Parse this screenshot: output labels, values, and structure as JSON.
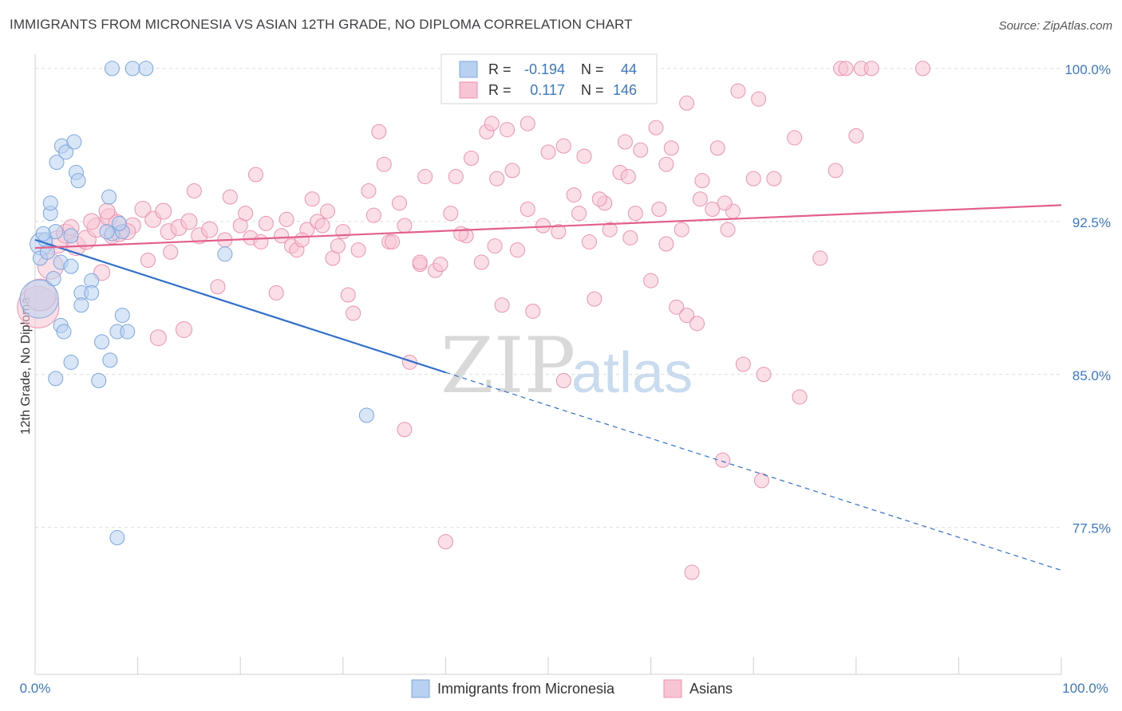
{
  "title": "IMMIGRANTS FROM MICRONESIA VS ASIAN 12TH GRADE, NO DIPLOMA CORRELATION CHART",
  "source": "Source: ZipAtlas.com",
  "watermark": {
    "zip": "ZIP",
    "atlas": "atlas"
  },
  "stats_box": {
    "rows": [
      {
        "r_label": "R =",
        "r_value": "-0.194",
        "n_label": "N =",
        "n_value": "44"
      },
      {
        "r_label": "R =",
        "r_value": "0.117",
        "n_label": "N =",
        "n_value": "146"
      }
    ]
  },
  "colors": {
    "blue_fill": "#b9d1f0",
    "blue_stroke": "#7aa6df",
    "blue_line": "#2f6fcc",
    "pink_fill": "#f7c4d4",
    "pink_stroke": "#ec92b0",
    "pink_line": "#e2608c",
    "grid": "#dcdcdc",
    "tick_text": "#3b78c3"
  },
  "chart_data": {
    "type": "scatter",
    "xlabel": "",
    "ylabel": "12th Grade, No Diploma",
    "xlim": [
      0,
      100
    ],
    "ylim": [
      70.3,
      100.7
    ],
    "x_tick_labels": {
      "left": "0.0%",
      "right": "100.0%"
    },
    "y_ticks": [
      {
        "value": 100.0,
        "label": "100.0%"
      },
      {
        "value": 92.5,
        "label": "92.5%"
      },
      {
        "value": 85.0,
        "label": "85.0%"
      },
      {
        "value": 77.5,
        "label": "77.5%"
      }
    ],
    "grid": true,
    "legend_position": "bottom",
    "series": [
      {
        "name": "Immigrants from Micronesia",
        "color": "blue",
        "trend": {
          "x": [
            0,
            40
          ],
          "y": [
            91.6,
            85.1
          ],
          "dashed_to": [
            100,
            75.4
          ]
        },
        "points": [
          {
            "x": 0.6,
            "y": 91.4,
            "s": 14
          },
          {
            "x": 0.4,
            "y": 88.7,
            "s": 24
          },
          {
            "x": 1.0,
            "y": 91.6,
            "s": 9
          },
          {
            "x": 1.5,
            "y": 92.9,
            "s": 9
          },
          {
            "x": 2.0,
            "y": 92.0,
            "s": 9
          },
          {
            "x": 0.8,
            "y": 91.9,
            "s": 9
          },
          {
            "x": 0.5,
            "y": 90.7,
            "s": 9
          },
          {
            "x": 1.2,
            "y": 91.0,
            "s": 9
          },
          {
            "x": 2.5,
            "y": 90.5,
            "s": 9
          },
          {
            "x": 3.5,
            "y": 91.8,
            "s": 9
          },
          {
            "x": 1.5,
            "y": 93.4,
            "s": 9
          },
          {
            "x": 2.1,
            "y": 95.4,
            "s": 9
          },
          {
            "x": 2.6,
            "y": 96.2,
            "s": 9
          },
          {
            "x": 3.0,
            "y": 95.9,
            "s": 9
          },
          {
            "x": 3.8,
            "y": 96.4,
            "s": 9
          },
          {
            "x": 4.0,
            "y": 94.9,
            "s": 9
          },
          {
            "x": 4.2,
            "y": 94.5,
            "s": 9
          },
          {
            "x": 7.2,
            "y": 93.7,
            "s": 9
          },
          {
            "x": 7.5,
            "y": 91.9,
            "s": 9
          },
          {
            "x": 8.5,
            "y": 92.0,
            "s": 9
          },
          {
            "x": 7.0,
            "y": 92.0,
            "s": 9
          },
          {
            "x": 1.8,
            "y": 89.7,
            "s": 9
          },
          {
            "x": 3.5,
            "y": 90.3,
            "s": 9
          },
          {
            "x": 4.5,
            "y": 89.0,
            "s": 9
          },
          {
            "x": 5.5,
            "y": 89.6,
            "s": 9
          },
          {
            "x": 5.5,
            "y": 89.0,
            "s": 9
          },
          {
            "x": 4.5,
            "y": 88.4,
            "s": 9
          },
          {
            "x": 2.5,
            "y": 87.4,
            "s": 9
          },
          {
            "x": 2.8,
            "y": 87.1,
            "s": 9
          },
          {
            "x": 8.0,
            "y": 87.1,
            "s": 9
          },
          {
            "x": 8.5,
            "y": 87.9,
            "s": 9
          },
          {
            "x": 9.0,
            "y": 87.1,
            "s": 9
          },
          {
            "x": 6.5,
            "y": 86.6,
            "s": 9
          },
          {
            "x": 3.5,
            "y": 85.6,
            "s": 9
          },
          {
            "x": 7.3,
            "y": 85.7,
            "s": 9
          },
          {
            "x": 2.0,
            "y": 84.8,
            "s": 9
          },
          {
            "x": 6.2,
            "y": 84.7,
            "s": 9
          },
          {
            "x": 7.5,
            "y": 100.0,
            "s": 9
          },
          {
            "x": 9.5,
            "y": 100.0,
            "s": 9
          },
          {
            "x": 10.8,
            "y": 100.0,
            "s": 9
          },
          {
            "x": 8.2,
            "y": 92.4,
            "s": 9
          },
          {
            "x": 18.5,
            "y": 90.9,
            "s": 9
          },
          {
            "x": 32.3,
            "y": 83.0,
            "s": 9
          },
          {
            "x": 8.0,
            "y": 77.0,
            "s": 9
          }
        ]
      },
      {
        "name": "Asians",
        "color": "pink",
        "trend": {
          "x": [
            0,
            100
          ],
          "y": [
            91.2,
            93.3
          ]
        },
        "points": [
          {
            "x": 0.3,
            "y": 88.3,
            "s": 26
          },
          {
            "x": 0.5,
            "y": 88.9,
            "s": 20
          },
          {
            "x": 1.5,
            "y": 90.3,
            "s": 16
          },
          {
            "x": 2.2,
            "y": 91.5,
            "s": 14
          },
          {
            "x": 3.0,
            "y": 91.9,
            "s": 12
          },
          {
            "x": 4.0,
            "y": 91.3,
            "s": 12
          },
          {
            "x": 5.0,
            "y": 91.6,
            "s": 12
          },
          {
            "x": 6.0,
            "y": 92.2,
            "s": 12
          },
          {
            "x": 7.2,
            "y": 92.7,
            "s": 11
          },
          {
            "x": 8.0,
            "y": 92.4,
            "s": 11
          },
          {
            "x": 9.5,
            "y": 92.3,
            "s": 10
          },
          {
            "x": 10.5,
            "y": 93.1,
            "s": 10
          },
          {
            "x": 11.5,
            "y": 92.6,
            "s": 10
          },
          {
            "x": 12.5,
            "y": 93.0,
            "s": 10
          },
          {
            "x": 7.5,
            "y": 91.8,
            "s": 10
          },
          {
            "x": 8.2,
            "y": 91.9,
            "s": 10
          },
          {
            "x": 13.0,
            "y": 92.0,
            "s": 10
          },
          {
            "x": 14.0,
            "y": 92.2,
            "s": 10
          },
          {
            "x": 15.0,
            "y": 92.5,
            "s": 10
          },
          {
            "x": 16.0,
            "y": 91.8,
            "s": 10
          },
          {
            "x": 17.0,
            "y": 92.1,
            "s": 10
          },
          {
            "x": 18.5,
            "y": 91.6,
            "s": 9
          },
          {
            "x": 20.0,
            "y": 92.3,
            "s": 9
          },
          {
            "x": 21.0,
            "y": 91.7,
            "s": 9
          },
          {
            "x": 22.5,
            "y": 92.4,
            "s": 9
          },
          {
            "x": 24.0,
            "y": 91.8,
            "s": 9
          },
          {
            "x": 25.0,
            "y": 91.3,
            "s": 9
          },
          {
            "x": 26.5,
            "y": 92.1,
            "s": 9
          },
          {
            "x": 27.5,
            "y": 92.5,
            "s": 9
          },
          {
            "x": 28.5,
            "y": 93.0,
            "s": 9
          },
          {
            "x": 30.0,
            "y": 92.0,
            "s": 9
          },
          {
            "x": 31.5,
            "y": 91.1,
            "s": 9
          },
          {
            "x": 33.0,
            "y": 92.8,
            "s": 9
          },
          {
            "x": 34.5,
            "y": 91.5,
            "s": 9
          },
          {
            "x": 36.0,
            "y": 92.3,
            "s": 9
          },
          {
            "x": 37.5,
            "y": 90.4,
            "s": 9
          },
          {
            "x": 39.0,
            "y": 90.1,
            "s": 9
          },
          {
            "x": 40.5,
            "y": 92.9,
            "s": 9
          },
          {
            "x": 42.0,
            "y": 91.8,
            "s": 9
          },
          {
            "x": 43.5,
            "y": 90.5,
            "s": 9
          },
          {
            "x": 45.0,
            "y": 94.6,
            "s": 9
          },
          {
            "x": 46.5,
            "y": 95.0,
            "s": 9
          },
          {
            "x": 48.0,
            "y": 93.1,
            "s": 9
          },
          {
            "x": 49.5,
            "y": 92.3,
            "s": 9
          },
          {
            "x": 51.0,
            "y": 92.0,
            "s": 9
          },
          {
            "x": 52.5,
            "y": 93.8,
            "s": 9
          },
          {
            "x": 54.0,
            "y": 91.5,
            "s": 9
          },
          {
            "x": 55.5,
            "y": 93.4,
            "s": 9
          },
          {
            "x": 57.0,
            "y": 94.9,
            "s": 9
          },
          {
            "x": 58.5,
            "y": 92.9,
            "s": 9
          },
          {
            "x": 60.0,
            "y": 89.6,
            "s": 9
          },
          {
            "x": 61.5,
            "y": 91.4,
            "s": 9
          },
          {
            "x": 62.5,
            "y": 88.3,
            "s": 9
          },
          {
            "x": 63.5,
            "y": 87.9,
            "s": 9
          },
          {
            "x": 64.5,
            "y": 87.5,
            "s": 9
          },
          {
            "x": 66.0,
            "y": 93.1,
            "s": 9
          },
          {
            "x": 67.5,
            "y": 92.1,
            "s": 9
          },
          {
            "x": 69.0,
            "y": 85.5,
            "s": 9
          },
          {
            "x": 70.0,
            "y": 94.6,
            "s": 9
          },
          {
            "x": 72.0,
            "y": 94.6,
            "s": 9
          },
          {
            "x": 74.0,
            "y": 96.6,
            "s": 9
          },
          {
            "x": 76.5,
            "y": 90.7,
            "s": 9
          },
          {
            "x": 78.0,
            "y": 95.0,
            "s": 9
          },
          {
            "x": 80.0,
            "y": 96.7,
            "s": 9
          },
          {
            "x": 3.5,
            "y": 92.2,
            "s": 10
          },
          {
            "x": 5.5,
            "y": 92.5,
            "s": 10
          },
          {
            "x": 7.0,
            "y": 93.0,
            "s": 10
          },
          {
            "x": 9.0,
            "y": 92.0,
            "s": 10
          },
          {
            "x": 6.5,
            "y": 90.0,
            "s": 10
          },
          {
            "x": 11.0,
            "y": 90.6,
            "s": 9
          },
          {
            "x": 13.2,
            "y": 91.0,
            "s": 9
          },
          {
            "x": 15.5,
            "y": 94.0,
            "s": 9
          },
          {
            "x": 19.0,
            "y": 93.7,
            "s": 9
          },
          {
            "x": 21.5,
            "y": 94.8,
            "s": 9
          },
          {
            "x": 23.5,
            "y": 89.0,
            "s": 9
          },
          {
            "x": 17.8,
            "y": 89.3,
            "s": 9
          },
          {
            "x": 14.5,
            "y": 87.2,
            "s": 10
          },
          {
            "x": 12.0,
            "y": 86.8,
            "s": 10
          },
          {
            "x": 25.5,
            "y": 91.1,
            "s": 9
          },
          {
            "x": 27.0,
            "y": 93.6,
            "s": 9
          },
          {
            "x": 29.0,
            "y": 90.7,
            "s": 9
          },
          {
            "x": 30.5,
            "y": 88.9,
            "s": 9
          },
          {
            "x": 31.0,
            "y": 88.0,
            "s": 9
          },
          {
            "x": 32.5,
            "y": 94.0,
            "s": 9
          },
          {
            "x": 34.0,
            "y": 95.3,
            "s": 9
          },
          {
            "x": 35.5,
            "y": 93.4,
            "s": 9
          },
          {
            "x": 36.5,
            "y": 85.6,
            "s": 9
          },
          {
            "x": 38.0,
            "y": 94.7,
            "s": 9
          },
          {
            "x": 39.5,
            "y": 90.4,
            "s": 9
          },
          {
            "x": 41.0,
            "y": 94.7,
            "s": 9
          },
          {
            "x": 42.5,
            "y": 95.6,
            "s": 9
          },
          {
            "x": 44.0,
            "y": 96.9,
            "s": 9
          },
          {
            "x": 45.5,
            "y": 88.4,
            "s": 9
          },
          {
            "x": 47.0,
            "y": 91.1,
            "s": 9
          },
          {
            "x": 48.5,
            "y": 88.1,
            "s": 9
          },
          {
            "x": 50.0,
            "y": 95.9,
            "s": 9
          },
          {
            "x": 51.5,
            "y": 96.2,
            "s": 9
          },
          {
            "x": 53.0,
            "y": 92.9,
            "s": 9
          },
          {
            "x": 54.5,
            "y": 88.7,
            "s": 9
          },
          {
            "x": 56.0,
            "y": 92.1,
            "s": 9
          },
          {
            "x": 57.5,
            "y": 96.4,
            "s": 9
          },
          {
            "x": 59.0,
            "y": 96.0,
            "s": 9
          },
          {
            "x": 60.5,
            "y": 97.1,
            "s": 9
          },
          {
            "x": 62.0,
            "y": 96.1,
            "s": 9
          },
          {
            "x": 63.5,
            "y": 98.3,
            "s": 9
          },
          {
            "x": 65.0,
            "y": 94.5,
            "s": 9
          },
          {
            "x": 66.5,
            "y": 96.1,
            "s": 9
          },
          {
            "x": 68.0,
            "y": 93.0,
            "s": 9
          },
          {
            "x": 33.5,
            "y": 96.9,
            "s": 9
          },
          {
            "x": 34.8,
            "y": 91.5,
            "s": 9
          },
          {
            "x": 44.5,
            "y": 97.3,
            "s": 9
          },
          {
            "x": 46.0,
            "y": 97.0,
            "s": 9
          },
          {
            "x": 48.0,
            "y": 97.3,
            "s": 9
          },
          {
            "x": 68.5,
            "y": 98.9,
            "s": 9
          },
          {
            "x": 78.5,
            "y": 100.0,
            "s": 9
          },
          {
            "x": 79.0,
            "y": 100.0,
            "s": 9
          },
          {
            "x": 80.5,
            "y": 100.0,
            "s": 9
          },
          {
            "x": 81.5,
            "y": 100.0,
            "s": 9
          },
          {
            "x": 86.5,
            "y": 100.0,
            "s": 9
          },
          {
            "x": 70.5,
            "y": 98.5,
            "s": 9
          },
          {
            "x": 71.0,
            "y": 85.0,
            "s": 9
          },
          {
            "x": 67.0,
            "y": 80.8,
            "s": 9
          },
          {
            "x": 70.8,
            "y": 79.8,
            "s": 9
          },
          {
            "x": 36.0,
            "y": 82.3,
            "s": 9
          },
          {
            "x": 40.0,
            "y": 76.8,
            "s": 9
          },
          {
            "x": 64.0,
            "y": 75.3,
            "s": 9
          },
          {
            "x": 51.5,
            "y": 84.7,
            "s": 9
          },
          {
            "x": 74.5,
            "y": 83.9,
            "s": 9
          },
          {
            "x": 37.5,
            "y": 90.5,
            "s": 9
          },
          {
            "x": 41.5,
            "y": 91.9,
            "s": 9
          },
          {
            "x": 44.8,
            "y": 91.3,
            "s": 9
          },
          {
            "x": 58.0,
            "y": 91.7,
            "s": 9
          },
          {
            "x": 60.8,
            "y": 93.1,
            "s": 9
          },
          {
            "x": 63.0,
            "y": 92.1,
            "s": 9
          },
          {
            "x": 64.8,
            "y": 93.6,
            "s": 9
          },
          {
            "x": 67.2,
            "y": 93.4,
            "s": 9
          },
          {
            "x": 55.0,
            "y": 93.6,
            "s": 9
          },
          {
            "x": 53.5,
            "y": 95.7,
            "s": 9
          },
          {
            "x": 57.8,
            "y": 94.7,
            "s": 9
          },
          {
            "x": 61.5,
            "y": 95.3,
            "s": 9
          },
          {
            "x": 20.5,
            "y": 92.9,
            "s": 9
          },
          {
            "x": 22.0,
            "y": 91.5,
            "s": 9
          },
          {
            "x": 24.5,
            "y": 92.6,
            "s": 9
          },
          {
            "x": 26.0,
            "y": 91.6,
            "s": 9
          },
          {
            "x": 28.0,
            "y": 92.3,
            "s": 9
          },
          {
            "x": 29.5,
            "y": 91.3,
            "s": 9
          }
        ]
      }
    ]
  },
  "legend": {
    "items": [
      {
        "label": "Immigrants from Micronesia",
        "color": "blue"
      },
      {
        "label": "Asians",
        "color": "pink"
      }
    ]
  }
}
